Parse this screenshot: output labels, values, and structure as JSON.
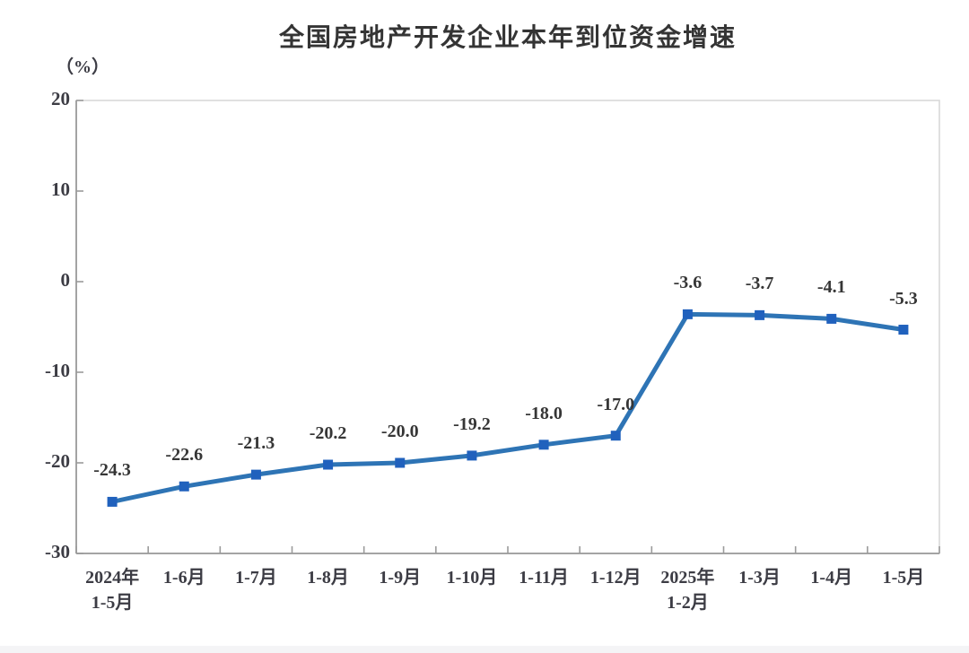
{
  "title": "全国房地产开发企业本年到位资金增速",
  "axis_unit": "（%）",
  "colors": {
    "title_text": "#343434",
    "line": "#2e74b5",
    "marker": "#2061bd",
    "axis_line": "#9b9b9b",
    "plot_border": "#d9d9d9",
    "tick_text": "#3c3c44",
    "data_label_text": "#363636"
  },
  "chart_data": {
    "type": "line",
    "title": "全国房地产开发企业本年到位资金增速",
    "ylabel": "（%）",
    "xlabel": "",
    "categories": [
      "2024年\n1-5月",
      "1-6月",
      "1-7月",
      "1-8月",
      "1-9月",
      "1-10月",
      "1-11月",
      "1-12月",
      "2025年\n1-2月",
      "1-3月",
      "1-4月",
      "1-5月"
    ],
    "values": [
      -24.3,
      -22.6,
      -21.3,
      -20.2,
      -20.0,
      -19.2,
      -18.0,
      -17.0,
      -3.6,
      -3.7,
      -4.1,
      -5.3
    ],
    "data_labels": [
      "-24.3",
      "-22.6",
      "-21.3",
      "-20.2",
      "-20.0",
      "-19.2",
      "-18.0",
      "-17.0",
      "-3.6",
      "-3.7",
      "-4.1",
      "-5.3"
    ],
    "y_ticks": [
      20,
      10,
      0,
      -10,
      -20,
      -30
    ],
    "ylim": [
      -30,
      20
    ],
    "grid": false,
    "legend_position": "none",
    "marker_shape": "square"
  }
}
